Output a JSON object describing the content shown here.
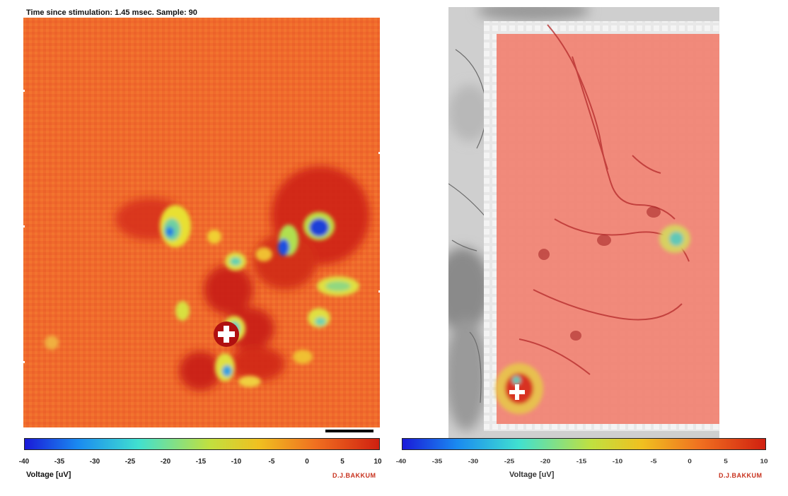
{
  "left_panel": {
    "header": "Time since stimulation: 1.45 msec.  Sample: 90",
    "colorbar": {
      "ticks": [
        "-40",
        "-35",
        "-30",
        "-25",
        "-20",
        "-15",
        "-10",
        "-5",
        "0",
        "5",
        "10"
      ],
      "label": "Voltage [uV]"
    },
    "credit": "D.J.BAKKUM",
    "credit_color": "#c8321e"
  },
  "right_panel": {
    "colorbar": {
      "ticks": [
        "-40",
        "-35",
        "-30",
        "-25",
        "-20",
        "-15",
        "-10",
        "-5",
        "0",
        "5",
        "10"
      ],
      "label": "Voltage [uV]"
    },
    "credit": "D.J.BAKKUM",
    "credit_color": "#c8321e"
  },
  "colors": {
    "background_map": "#f06a2c",
    "colormap_stops": [
      "#1a1ad8",
      "#1aa0f0",
      "#40e0d0",
      "#d8e020",
      "#ffa020",
      "#d02010",
      "#a01010"
    ]
  },
  "icons": {
    "stimulation_marker": "plus-icon"
  }
}
